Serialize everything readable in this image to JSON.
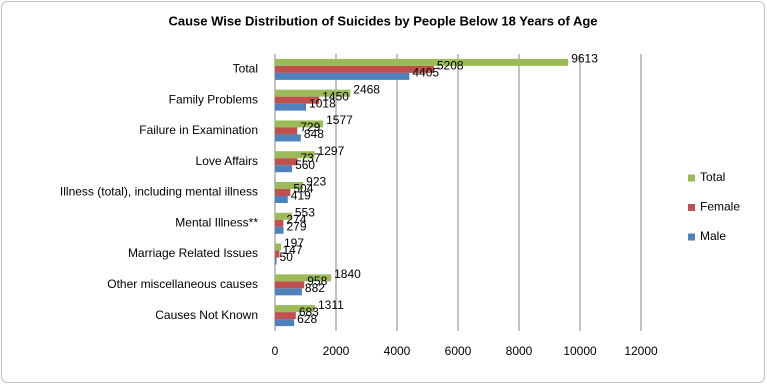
{
  "chart_data": {
    "type": "bar",
    "orientation": "horizontal",
    "title": "Cause Wise Distribution of Suicides by People Below 18 Years of Age",
    "categories": [
      "Total",
      "Family Problems",
      "Failure in Examination",
      "Love Affairs",
      "Illness (total), including mental illness",
      "Mental Illness**",
      "Marriage Related Issues",
      "Other miscellaneous causes",
      "Causes Not Known"
    ],
    "series": [
      {
        "name": "Total",
        "color": "#9bbb59",
        "values": [
          9613,
          2468,
          1577,
          1297,
          923,
          553,
          197,
          1840,
          1311
        ]
      },
      {
        "name": "Female",
        "color": "#c0504d",
        "values": [
          5208,
          1450,
          729,
          737,
          504,
          274,
          147,
          958,
          683
        ]
      },
      {
        "name": "Male",
        "color": "#4f81bd",
        "values": [
          4405,
          1018,
          848,
          560,
          419,
          279,
          50,
          882,
          628
        ]
      }
    ],
    "xlim": [
      0,
      12000
    ],
    "xticks": [
      0,
      2000,
      4000,
      6000,
      8000,
      10000,
      12000
    ],
    "grid": true,
    "legend": "right"
  }
}
